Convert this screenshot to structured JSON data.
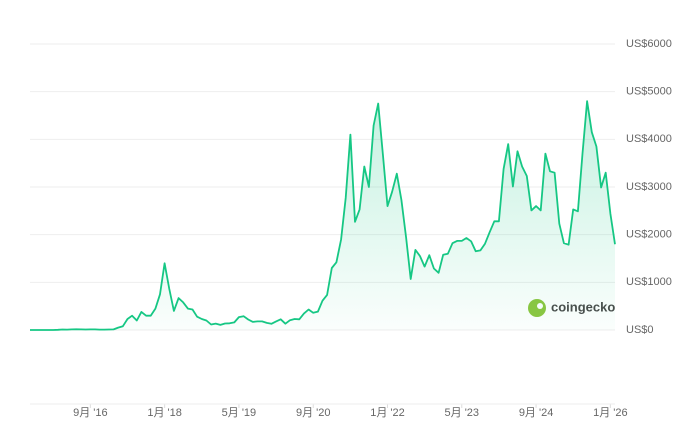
{
  "chart_data": {
    "type": "line",
    "watermark": "coingecko",
    "color": "#16c784",
    "grid": true,
    "x": [
      "2015-08",
      "2015-09",
      "2015-10",
      "2015-11",
      "2015-12",
      "2016-01",
      "2016-02",
      "2016-03",
      "2016-04",
      "2016-05",
      "2016-06",
      "2016-07",
      "2016-08",
      "2016-09",
      "2016-10",
      "2016-11",
      "2016-12",
      "2017-01",
      "2017-02",
      "2017-03",
      "2017-04",
      "2017-05",
      "2017-06",
      "2017-07",
      "2017-08",
      "2017-09",
      "2017-10",
      "2017-11",
      "2017-12",
      "2018-01",
      "2018-02",
      "2018-03",
      "2018-04",
      "2018-05",
      "2018-06",
      "2018-07",
      "2018-08",
      "2018-09",
      "2018-10",
      "2018-11",
      "2018-12",
      "2019-01",
      "2019-02",
      "2019-03",
      "2019-04",
      "2019-05",
      "2019-06",
      "2019-07",
      "2019-08",
      "2019-09",
      "2019-10",
      "2019-11",
      "2019-12",
      "2020-01",
      "2020-02",
      "2020-03",
      "2020-04",
      "2020-05",
      "2020-06",
      "2020-07",
      "2020-08",
      "2020-09",
      "2020-10",
      "2020-11",
      "2020-12",
      "2021-01",
      "2021-02",
      "2021-03",
      "2021-04",
      "2021-05",
      "2021-06",
      "2021-07",
      "2021-08",
      "2021-09",
      "2021-10",
      "2021-11",
      "2021-12",
      "2022-01",
      "2022-02",
      "2022-03",
      "2022-04",
      "2022-05",
      "2022-06",
      "2022-07",
      "2022-08",
      "2022-09",
      "2022-10",
      "2022-11",
      "2022-12",
      "2023-01",
      "2023-02",
      "2023-03",
      "2023-04",
      "2023-05",
      "2023-06",
      "2023-07",
      "2023-08",
      "2023-09",
      "2023-10",
      "2023-11",
      "2023-12",
      "2024-01",
      "2024-02",
      "2024-03",
      "2024-04",
      "2024-05",
      "2024-06",
      "2024-07",
      "2024-08",
      "2024-09",
      "2024-10",
      "2024-11",
      "2024-12",
      "2025-01",
      "2025-02",
      "2025-03",
      "2025-04",
      "2025-05",
      "2025-06",
      "2025-07",
      "2025-08",
      "2025-09",
      "2025-10",
      "2025-11",
      "2025-12",
      "2026-01",
      "2026-02"
    ],
    "values": [
      1,
      1,
      0.5,
      1,
      1,
      1,
      5,
      11,
      9,
      12,
      14,
      12,
      11,
      13,
      12,
      9,
      8,
      10,
      13,
      50,
      80,
      230,
      300,
      200,
      380,
      300,
      300,
      450,
      750,
      1400,
      860,
      400,
      670,
      580,
      450,
      430,
      280,
      230,
      200,
      115,
      135,
      107,
      136,
      141,
      160,
      270,
      290,
      220,
      170,
      180,
      180,
      150,
      130,
      180,
      225,
      133,
      206,
      230,
      225,
      345,
      430,
      360,
      386,
      615,
      737,
      1300,
      1420,
      1900,
      2770,
      4100,
      2270,
      2530,
      3430,
      3000,
      4290,
      4750,
      3680,
      2600,
      2900,
      3280,
      2730,
      1940,
      1070,
      1680,
      1550,
      1330,
      1570,
      1290,
      1200,
      1580,
      1600,
      1820,
      1870,
      1870,
      1930,
      1860,
      1650,
      1670,
      1810,
      2050,
      2280,
      2280,
      3380,
      3900,
      3010,
      3750,
      3430,
      3230,
      2510,
      2600,
      2510,
      3700,
      3330,
      3300,
      2230,
      1820,
      1790,
      2530,
      2490,
      3700,
      4800,
      4150,
      3850,
      2990,
      3300,
      2440,
      1800
    ],
    "xlim": [
      "2015-08",
      "2026-02"
    ],
    "xticks": [
      {
        "value": "2016-09",
        "label": "9月 '16"
      },
      {
        "value": "2018-01",
        "label": "1月 '18"
      },
      {
        "value": "2019-05",
        "label": "5月 '19"
      },
      {
        "value": "2020-09",
        "label": "9月 '20"
      },
      {
        "value": "2022-01",
        "label": "1月 '22"
      },
      {
        "value": "2023-05",
        "label": "5月 '23"
      },
      {
        "value": "2024-09",
        "label": "9月 '24"
      },
      {
        "value": "2026-01",
        "label": "1月 '26"
      }
    ],
    "ylim": [
      0,
      6000
    ],
    "yticks": [
      {
        "value": 0,
        "label": "US$0"
      },
      {
        "value": 1000,
        "label": "US$1000"
      },
      {
        "value": 2000,
        "label": "US$2000"
      },
      {
        "value": 3000,
        "label": "US$3000"
      },
      {
        "value": 4000,
        "label": "US$4000"
      },
      {
        "value": 5000,
        "label": "US$5000"
      },
      {
        "value": 6000,
        "label": "US$6000"
      }
    ]
  }
}
